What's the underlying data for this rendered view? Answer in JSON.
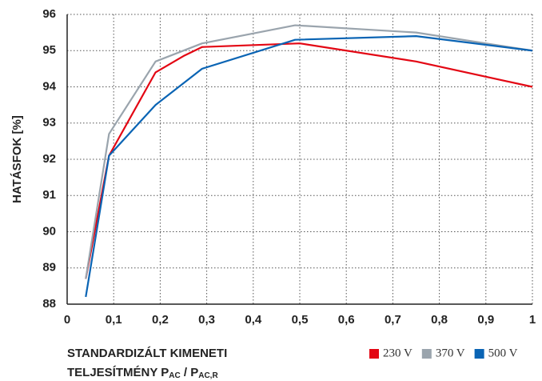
{
  "chart_data": {
    "type": "line",
    "y_label": "HATÁSFOK [%]",
    "x_label": {
      "line1": "STANDARDIZÁLT KIMENETI",
      "line2": "TELJESÍTMÉNY P",
      "sub1": "AC",
      "mid": " / P",
      "sub2": "AC,R"
    },
    "xlim": [
      0,
      1
    ],
    "xticks": [
      0,
      {
        "value": 0.1,
        "label": "0,1"
      },
      {
        "value": 0.2,
        "label": "0,2"
      },
      {
        "value": 0.3,
        "label": "0,3"
      },
      {
        "value": 0.4,
        "label": "0,4"
      },
      {
        "value": 0.5,
        "label": "0,5"
      },
      {
        "value": 0.6,
        "label": "0,6"
      },
      {
        "value": 0.7,
        "label": "0,7"
      },
      {
        "value": 0.8,
        "label": "0,8"
      },
      {
        "value": 0.9,
        "label": "0,9"
      },
      1
    ],
    "ylim": [
      88,
      96
    ],
    "yticks": [
      88,
      89,
      90,
      91,
      92,
      93,
      94,
      95,
      96
    ],
    "grid": true,
    "legend": "bottom-right",
    "series": [
      {
        "name": "230 V",
        "color": "#e30613",
        "x": [
          0.04,
          0.09,
          0.19,
          0.25,
          0.29,
          0.5,
          0.75,
          1.0
        ],
        "values": [
          88.7,
          92.1,
          94.4,
          94.85,
          95.1,
          95.2,
          94.7,
          94.0
        ]
      },
      {
        "name": "370 V",
        "color": "#9aa4ad",
        "x": [
          0.04,
          0.09,
          0.19,
          0.29,
          0.49,
          0.75,
          1.0
        ],
        "values": [
          88.7,
          92.7,
          94.7,
          95.2,
          95.7,
          95.5,
          95.0
        ]
      },
      {
        "name": "500 V",
        "color": "#0a64b4",
        "x": [
          0.04,
          0.09,
          0.19,
          0.29,
          0.49,
          0.75,
          1.0
        ],
        "values": [
          88.2,
          92.1,
          93.5,
          94.5,
          95.3,
          95.4,
          95.0
        ]
      }
    ]
  }
}
